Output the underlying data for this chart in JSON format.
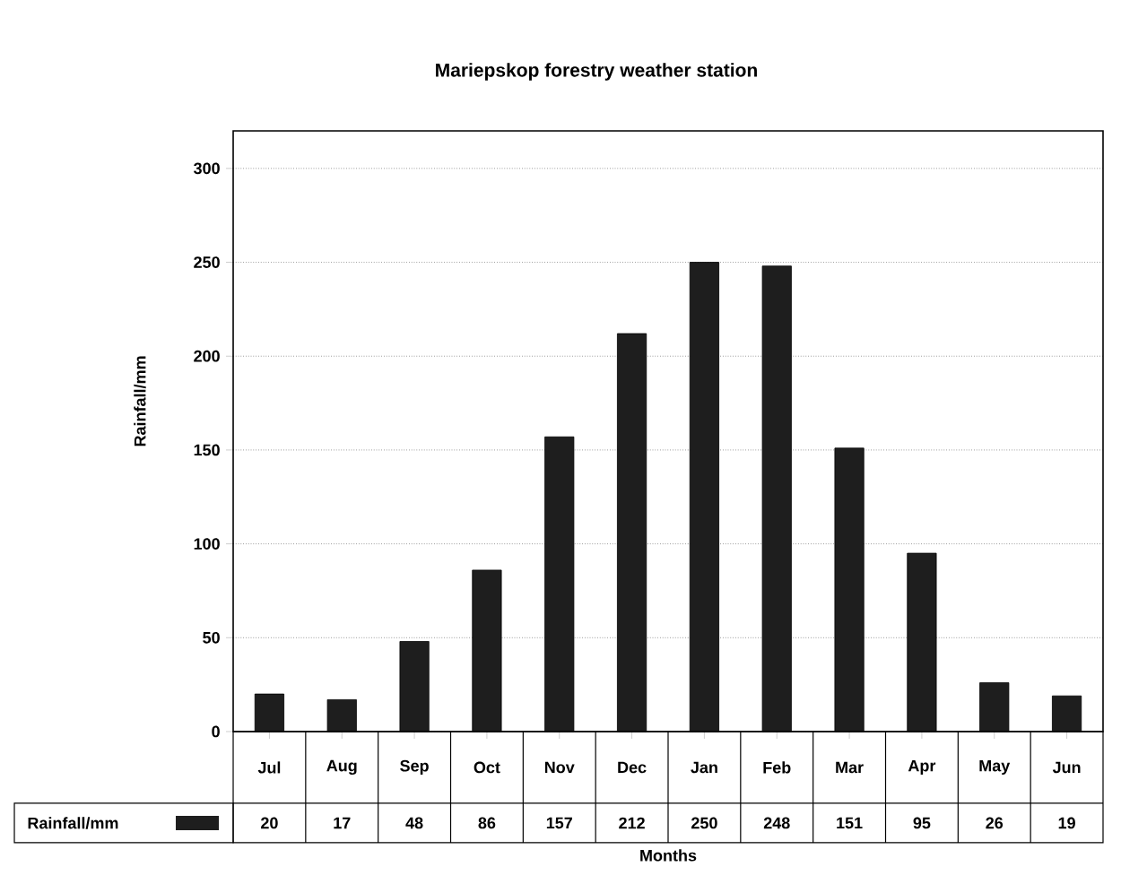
{
  "chart_data": {
    "type": "bar",
    "title": "Mariepskop forestry weather station",
    "xlabel": "Months",
    "ylabel": "Rainfall/mm",
    "categories": [
      "Jul",
      "Aug",
      "Sep",
      "Oct",
      "Nov",
      "Dec",
      "Jan",
      "Feb",
      "Mar",
      "Apr",
      "May",
      "Jun"
    ],
    "series": [
      {
        "name": "Rainfall/mm",
        "color": "#1e1e1e",
        "values": [
          20,
          17,
          48,
          86,
          157,
          212,
          250,
          248,
          151,
          95,
          26,
          19
        ]
      }
    ],
    "ylim": [
      0,
      320
    ],
    "yticks": [
      0,
      50,
      100,
      150,
      200,
      250,
      300
    ],
    "grid": "y",
    "data_labels": true,
    "legend": "bottom"
  }
}
